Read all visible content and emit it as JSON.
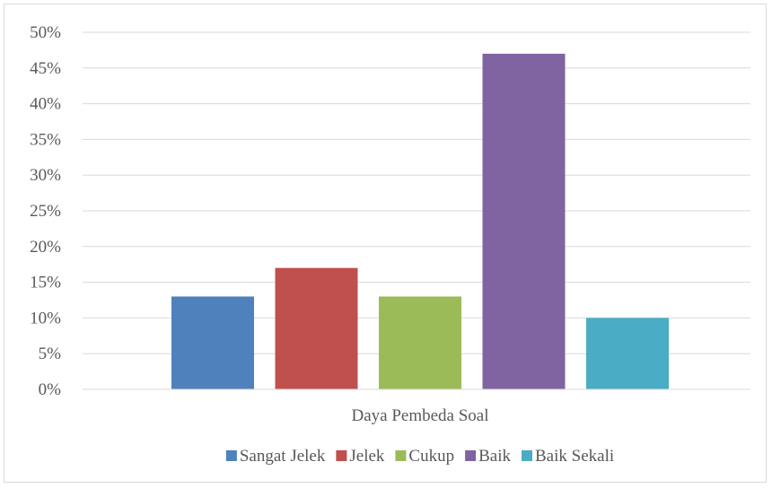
{
  "chart_data": {
    "type": "bar",
    "title": "",
    "xlabel": "",
    "ylabel": "",
    "category_label": "Daya Pembeda Soal",
    "ylim": [
      0,
      0.5
    ],
    "y_ticks": [
      0,
      0.05,
      0.1,
      0.15,
      0.2,
      0.25,
      0.3,
      0.35,
      0.4,
      0.45,
      0.5
    ],
    "y_tick_labels": [
      "0%",
      "5%",
      "10%",
      "15%",
      "20%",
      "25%",
      "30%",
      "35%",
      "40%",
      "45%",
      "50%"
    ],
    "grid": true,
    "legend_position": "bottom",
    "series": [
      {
        "name": "Sangat Jelek",
        "values": [
          0.13
        ],
        "color": "#4f81bd"
      },
      {
        "name": "Jelek",
        "values": [
          0.17
        ],
        "color": "#c0504d"
      },
      {
        "name": "Cukup",
        "values": [
          0.13
        ],
        "color": "#9bbb59"
      },
      {
        "name": "Baik",
        "values": [
          0.47
        ],
        "color": "#8064a2"
      },
      {
        "name": "Baik Sekali",
        "values": [
          0.1
        ],
        "color": "#4bacc6"
      }
    ]
  }
}
